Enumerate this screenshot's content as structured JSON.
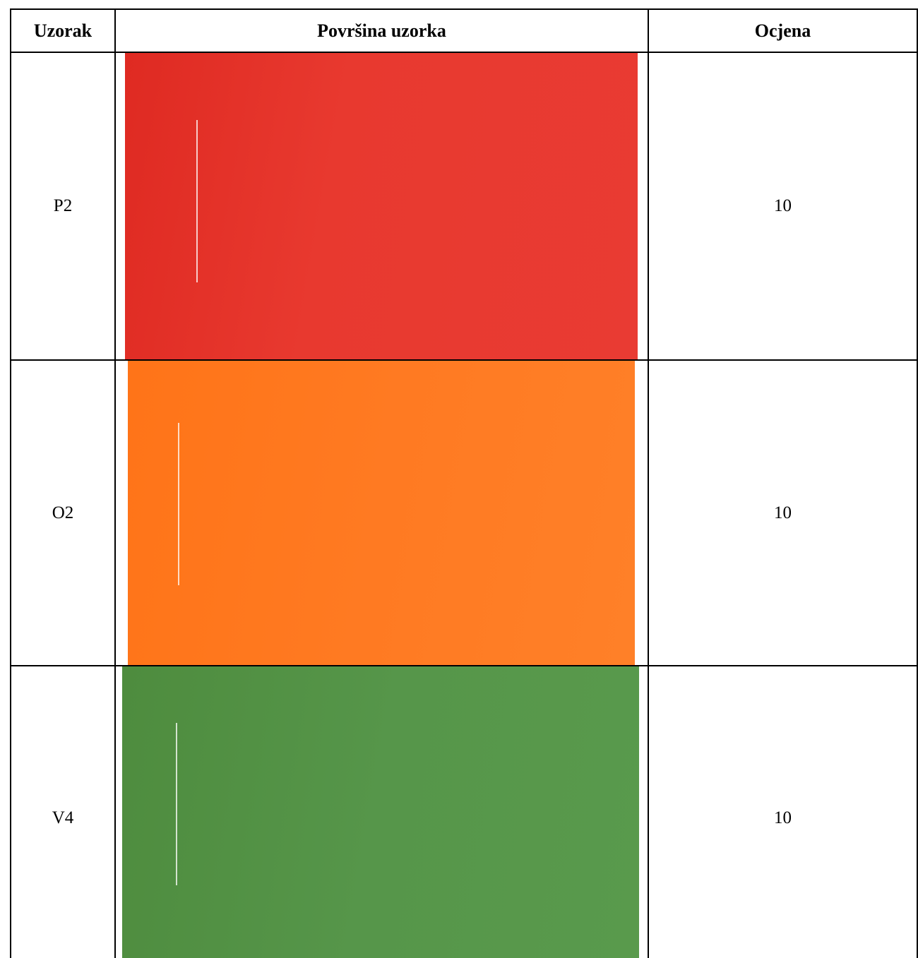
{
  "table": {
    "header": [
      "Uzorak",
      "Površina uzorka",
      "Ocjena"
    ],
    "rows": [
      {
        "sample": "P2",
        "grade": 10
      },
      {
        "sample": "O2",
        "grade": 10
      },
      {
        "sample": "V4",
        "grade": 10
      }
    ]
  }
}
